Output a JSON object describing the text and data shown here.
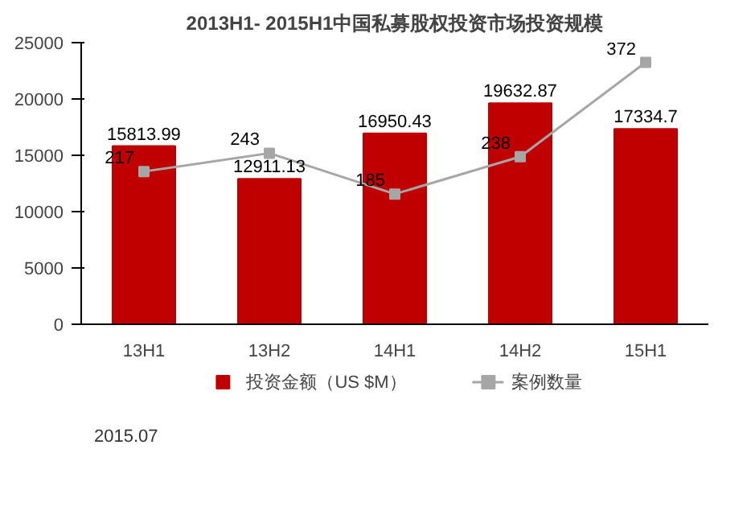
{
  "chart_data": {
    "type": "bar",
    "title": "2013H1- 2015H1中国私募股权投资市场投资规模",
    "categories": [
      "13H1",
      "13H2",
      "14H1",
      "14H2",
      "15H1"
    ],
    "series": [
      {
        "name": "投资金额（US $M）",
        "color": "#c00000",
        "values": [
          15813.99,
          12911.13,
          16950.43,
          19632.87,
          17334.7
        ]
      },
      {
        "name": "案例数量",
        "type": "line",
        "axis": "y2",
        "color": "#a6a6a6",
        "values": [
          217,
          243,
          185,
          238,
          372
        ]
      }
    ],
    "ylim": [
      0,
      25000
    ],
    "yticks": [
      0,
      5000,
      10000,
      15000,
      20000,
      25000
    ],
    "y2lim": [
      0,
      400
    ],
    "data_labels": true,
    "legend": "bottom",
    "marker": "square",
    "grid": false,
    "annotations": [
      "2015.07"
    ]
  }
}
